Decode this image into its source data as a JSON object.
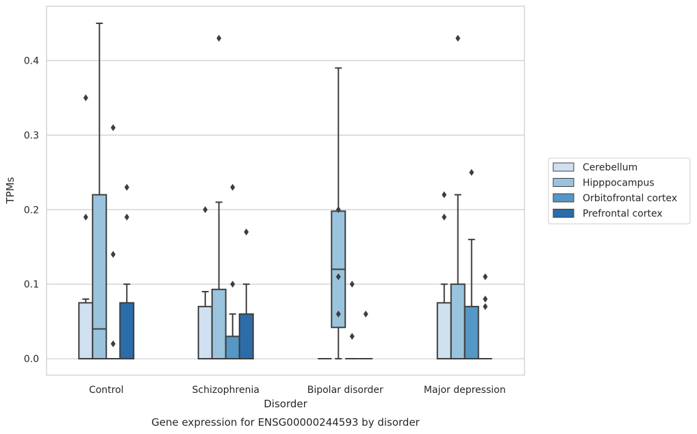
{
  "caption": "Gene expression for ENSG00000244593 by disorder",
  "chart_data": {
    "type": "box",
    "xlabel": "Disorder",
    "ylabel": "TPMs",
    "ylim": [
      -0.022,
      0.473
    ],
    "yticks": [
      "0.0",
      "0.1",
      "0.2",
      "0.3",
      "0.4"
    ],
    "grid": true,
    "legend_position": "right",
    "categories": [
      "Control",
      "Schizophrenia",
      "Bipolar disorder",
      "Major depression"
    ],
    "series": [
      {
        "name": "Cerebellum",
        "color": "#cfe0f0",
        "boxes": [
          {
            "whislo": 0.0,
            "q1": 0.0,
            "med": 0.0,
            "q3": 0.075,
            "whishi": 0.08,
            "fliers": [
              0.19,
              0.35
            ]
          },
          {
            "whislo": 0.0,
            "q1": 0.0,
            "med": 0.0,
            "q3": 0.07,
            "whishi": 0.09,
            "fliers": [
              0.2
            ]
          },
          {
            "whislo": 0.0,
            "q1": 0.0,
            "med": 0.0,
            "q3": 0.0,
            "whishi": 0.0,
            "fliers": []
          },
          {
            "whislo": 0.0,
            "q1": 0.0,
            "med": 0.0,
            "q3": 0.075,
            "whishi": 0.1,
            "fliers": [
              0.19,
              0.22
            ]
          }
        ]
      },
      {
        "name": "Hipppocampus",
        "color": "#9ac4dd",
        "boxes": [
          {
            "whislo": 0.0,
            "q1": 0.0,
            "med": 0.04,
            "q3": 0.22,
            "whishi": 0.45,
            "fliers": []
          },
          {
            "whislo": 0.0,
            "q1": 0.0,
            "med": 0.0,
            "q3": 0.093,
            "whishi": 0.21,
            "fliers": [
              0.43
            ]
          },
          {
            "whislo": 0.0,
            "q1": 0.042,
            "med": 0.12,
            "q3": 0.198,
            "whishi": 0.39,
            "fliers": [
              0.06,
              0.11,
              0.2
            ]
          },
          {
            "whislo": 0.0,
            "q1": 0.0,
            "med": 0.0,
            "q3": 0.1,
            "whishi": 0.22,
            "fliers": [
              0.43
            ]
          }
        ]
      },
      {
        "name": "Orbitofrontal cortex",
        "color": "#5597c5",
        "boxes": [
          {
            "whislo": 0.0,
            "q1": 0.0,
            "med": 0.0,
            "q3": 0.0,
            "whishi": 0.0,
            "fliers": [
              0.02,
              0.14,
              0.31
            ]
          },
          {
            "whislo": 0.0,
            "q1": 0.0,
            "med": 0.0,
            "q3": 0.03,
            "whishi": 0.06,
            "fliers": [
              0.1,
              0.23
            ]
          },
          {
            "whislo": 0.0,
            "q1": 0.0,
            "med": 0.0,
            "q3": 0.0,
            "whishi": 0.0,
            "fliers": [
              0.03,
              0.1
            ]
          },
          {
            "whislo": 0.0,
            "q1": 0.0,
            "med": 0.0,
            "q3": 0.07,
            "whishi": 0.16,
            "fliers": [
              0.25
            ]
          }
        ]
      },
      {
        "name": "Prefrontal cortex",
        "color": "#2c6ca9",
        "boxes": [
          {
            "whislo": 0.0,
            "q1": 0.0,
            "med": 0.0,
            "q3": 0.075,
            "whishi": 0.1,
            "fliers": [
              0.19,
              0.23
            ]
          },
          {
            "whislo": 0.0,
            "q1": 0.0,
            "med": 0.0,
            "q3": 0.06,
            "whishi": 0.1,
            "fliers": [
              0.17
            ]
          },
          {
            "whislo": 0.0,
            "q1": 0.0,
            "med": 0.0,
            "q3": 0.0,
            "whishi": 0.0,
            "fliers": [
              0.06
            ]
          },
          {
            "whislo": 0.0,
            "q1": 0.0,
            "med": 0.0,
            "q3": 0.0,
            "whishi": 0.0,
            "fliers": [
              0.07,
              0.08,
              0.11
            ]
          }
        ]
      }
    ]
  }
}
